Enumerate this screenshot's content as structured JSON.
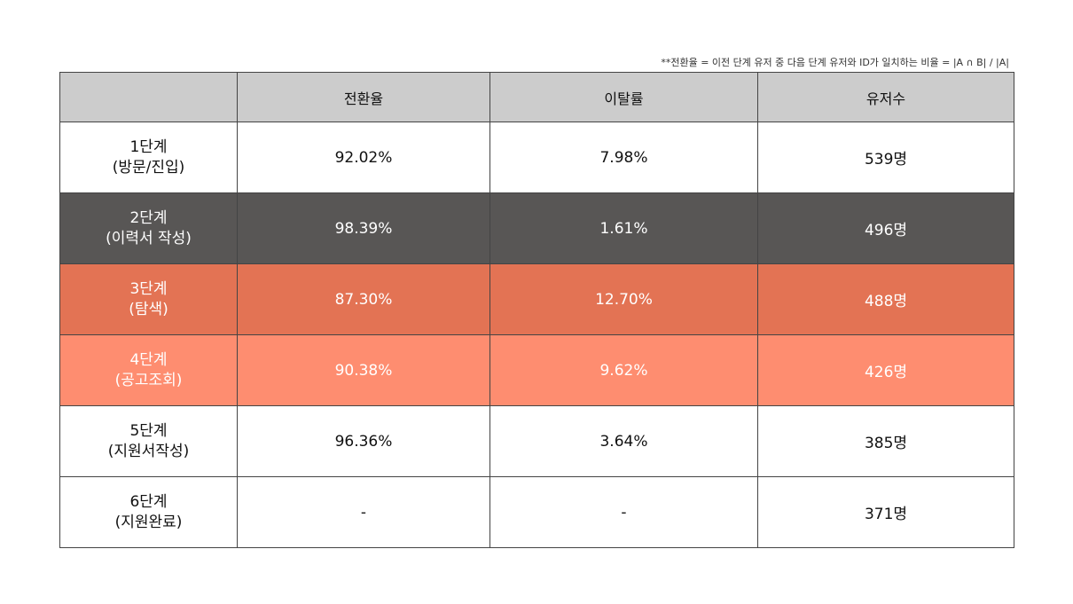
{
  "footnote": "**전환율 = 이전 단계 유저 중 다음 단계 유저와 ID가 일치하는 비율 = |A ∩ B| / |A|",
  "headers": [
    "",
    "전환율",
    "이탈률",
    "유저수"
  ],
  "rows": [
    {
      "stage": "1단계",
      "desc": "(방문/진입)",
      "conversion": "92.02%",
      "churn": "7.98%",
      "users": "539명",
      "fill": "#ffffff"
    },
    {
      "stage": "2단계",
      "desc": "(이력서 작성)",
      "conversion": "98.39%",
      "churn": "1.61%",
      "users": "496명",
      "fill": "#585655"
    },
    {
      "stage": "3단계",
      "desc": "(탐색)",
      "conversion": "87.30%",
      "churn": "12.70%",
      "users": "488명",
      "fill": "#e37354"
    },
    {
      "stage": "4단계",
      "desc": "(공고조회)",
      "conversion": "90.38%",
      "churn": "9.62%",
      "users": "426명",
      "fill": "#fe8d70"
    },
    {
      "stage": "5단계",
      "desc": "(지원서작성)",
      "conversion": "96.36%",
      "churn": "3.64%",
      "users": "385명",
      "fill": "#ffffff"
    },
    {
      "stage": "6단계",
      "desc": "(지원완료)",
      "conversion": "-",
      "churn": "-",
      "users": "371명",
      "fill": "#ffffff"
    }
  ]
}
